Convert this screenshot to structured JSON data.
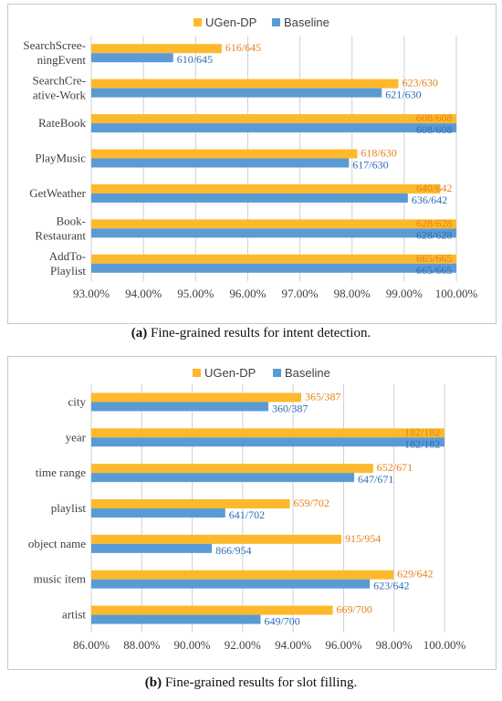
{
  "colors": {
    "series_a": "#FDB92B",
    "series_b": "#5B9BD5",
    "label_a": "#E8801A",
    "label_b": "#2E6DB5",
    "grid": "#D0D0D0"
  },
  "panels": [
    {
      "caption_tag": "(a)",
      "caption_text": "Fine-grained results for intent detection.",
      "chart_data": {
        "type": "bar",
        "orientation": "horizontal",
        "xlim": [
          93,
          100
        ],
        "x_ticks": [
          "93.00%",
          "94.00%",
          "95.00%",
          "96.00%",
          "97.00%",
          "98.00%",
          "99.00%",
          "100.00%"
        ],
        "legend_position": "top",
        "grid": true,
        "categories": [
          [
            "SearchScree-",
            "ningEvent"
          ],
          [
            "SearchCre-",
            "ative-Work"
          ],
          [
            "RateBook"
          ],
          [
            "PlayMusic"
          ],
          [
            "GetWeather"
          ],
          [
            "Book-",
            "Restaurant"
          ],
          [
            "AddTo-",
            "Playlist"
          ]
        ],
        "series": [
          {
            "name": "UGen-DP",
            "values": [
              95.5,
              98.89,
              100.0,
              98.1,
              99.69,
              100.0,
              100.0
            ],
            "labels": [
              "616/645",
              "623/630",
              "608/608",
              "618/630",
              "640/642",
              "628/628",
              "665/665"
            ]
          },
          {
            "name": "Baseline",
            "values": [
              94.57,
              98.57,
              100.0,
              97.94,
              99.07,
              100.0,
              100.0
            ],
            "labels": [
              "610/645",
              "621/630",
              "608/608",
              "617/630",
              "636/642",
              "628/628",
              "665/665"
            ]
          }
        ]
      }
    },
    {
      "caption_tag": "(b)",
      "caption_text": "Fine-grained results for slot filling.",
      "chart_data": {
        "type": "bar",
        "orientation": "horizontal",
        "xlim": [
          86,
          100
        ],
        "x_ticks": [
          "86.00%",
          "88.00%",
          "90.00%",
          "92.00%",
          "94.00%",
          "96.00%",
          "98.00%",
          "100.00%"
        ],
        "legend_position": "top",
        "grid": true,
        "categories": [
          [
            "city"
          ],
          [
            "year"
          ],
          [
            "time range"
          ],
          [
            "playlist"
          ],
          [
            "object name"
          ],
          [
            "music item"
          ],
          [
            "artist"
          ]
        ],
        "series": [
          {
            "name": "UGen-DP",
            "values": [
              94.32,
              100.0,
              97.17,
              93.87,
              95.91,
              97.98,
              95.57
            ],
            "labels": [
              "365/387",
              "182/182",
              "652/671",
              "659/702",
              "915/954",
              "629/642",
              "669/700"
            ]
          },
          {
            "name": "Baseline",
            "values": [
              93.02,
              100.0,
              96.42,
              91.31,
              90.78,
              97.04,
              92.71
            ],
            "labels": [
              "360/387",
              "182/182",
              "647/671",
              "641/702",
              "866/954",
              "623/642",
              "649/700"
            ]
          }
        ]
      }
    }
  ]
}
